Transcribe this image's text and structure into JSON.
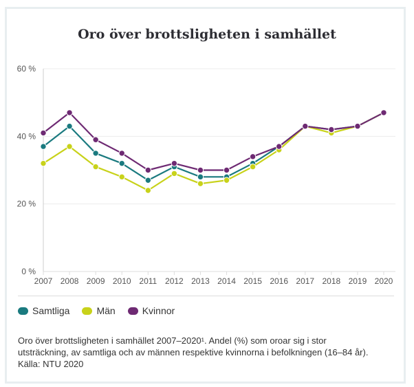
{
  "chart_data": {
    "type": "line",
    "title": "Oro över brottsligheten i samhället",
    "xlabel": "",
    "ylabel": "",
    "x": [
      "2007",
      "2008",
      "2009",
      "2010",
      "2011",
      "2012",
      "2013",
      "2014",
      "2015",
      "2016",
      "2017",
      "2018",
      "2019",
      "2020"
    ],
    "ylim": [
      0,
      60
    ],
    "yticks": [
      0,
      20,
      40,
      60
    ],
    "ytick_labels": [
      "0 %",
      "20 %",
      "40 %",
      "60 %"
    ],
    "grid": true,
    "legend_position": "bottom-left",
    "series": [
      {
        "name": "Samtliga",
        "color": "#1a7a7f",
        "values": [
          37,
          43,
          35,
          32,
          27,
          31,
          28,
          28,
          32,
          37,
          43,
          42,
          43,
          47
        ]
      },
      {
        "name": "Män",
        "color": "#c8d21a",
        "values": [
          32,
          37,
          31,
          28,
          24,
          29,
          26,
          27,
          31,
          36,
          43,
          41,
          43,
          47
        ]
      },
      {
        "name": "Kvinnor",
        "color": "#6e2a73",
        "values": [
          41,
          47,
          39,
          35,
          30,
          32,
          30,
          30,
          34,
          37,
          43,
          42,
          43,
          47
        ]
      }
    ]
  },
  "legend": [
    {
      "label": "Samtliga",
      "color": "#1a7a7f"
    },
    {
      "label": "Män",
      "color": "#c8d21a"
    },
    {
      "label": "Kvinnor",
      "color": "#6e2a73"
    }
  ],
  "caption": {
    "line1": "Oro över brottsligheten i samhället 2007–2020¹. Andel (%) som oroar sig i stor",
    "line2": "utsträckning, av samtliga och av männen respektive kvinnorna i befolkningen (16–84 år).",
    "line3": "Källa: NTU 2020"
  }
}
